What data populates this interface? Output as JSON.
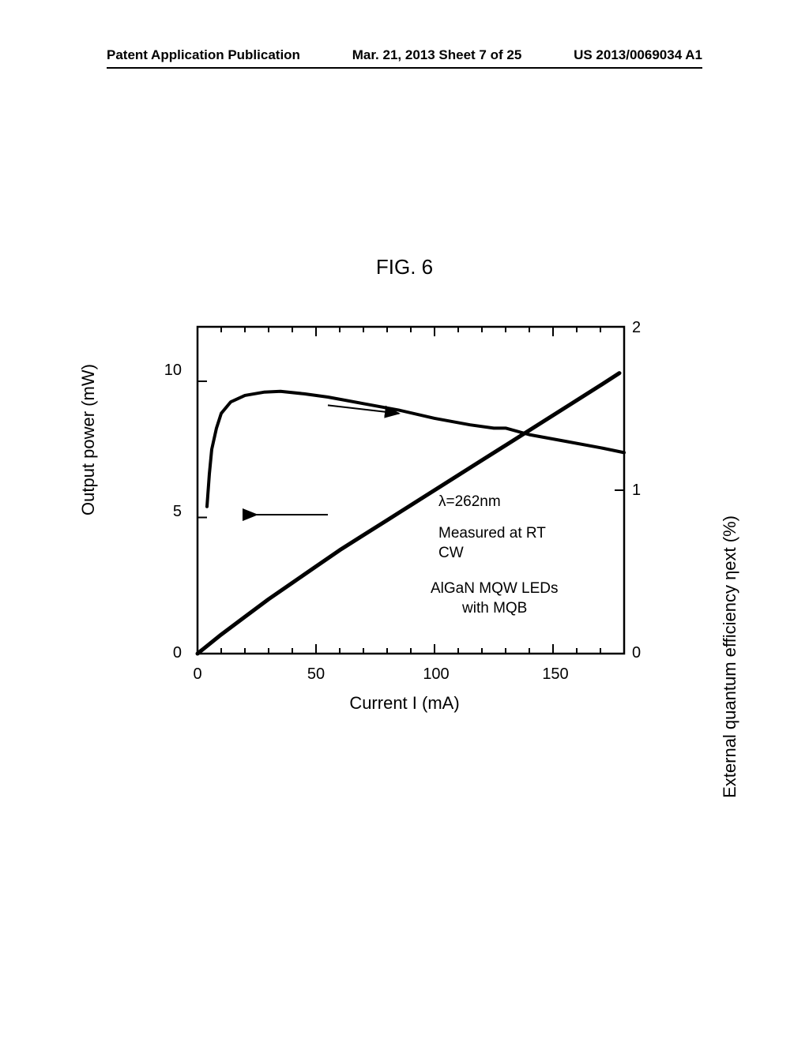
{
  "header": {
    "left": "Patent Application Publication",
    "center": "Mar. 21, 2013  Sheet 7 of 25",
    "right": "US 2013/0069034 A1"
  },
  "figure_title": "FIG. 6",
  "chart": {
    "type": "line",
    "background_color": "#ffffff",
    "axis_color": "#000000",
    "line_color": "#000000",
    "line_width_power": 5,
    "line_width_eqe": 4,
    "x_axis": {
      "label": "Current I (mA)",
      "min": 0,
      "max": 180,
      "ticks_major": [
        0,
        50,
        100,
        150
      ],
      "ticks_minor_step": 10
    },
    "y_left": {
      "label": "Output power (mW)",
      "min": 0,
      "max": 12,
      "ticks_major": [
        0,
        5,
        10
      ]
    },
    "y_right": {
      "label": "External quantum efficiency ηext (%)",
      "min": 0,
      "max": 2,
      "ticks_major": [
        0,
        1,
        2
      ]
    },
    "annotations": {
      "lambda": "λ=262nm",
      "measured": "Measured at RT",
      "cw": "CW",
      "device1": "AlGaN MQW LEDs",
      "device2": "with MQB"
    },
    "power_curve": [
      [
        0,
        0
      ],
      [
        10,
        0.7
      ],
      [
        20,
        1.35
      ],
      [
        30,
        2.0
      ],
      [
        40,
        2.6
      ],
      [
        50,
        3.2
      ],
      [
        60,
        3.8
      ],
      [
        70,
        4.35
      ],
      [
        80,
        4.9
      ],
      [
        90,
        5.45
      ],
      [
        100,
        6.0
      ],
      [
        110,
        6.55
      ],
      [
        120,
        7.1
      ],
      [
        130,
        7.65
      ],
      [
        140,
        8.2
      ],
      [
        150,
        8.75
      ],
      [
        160,
        9.3
      ],
      [
        170,
        9.85
      ],
      [
        178,
        10.3
      ]
    ],
    "eqe_curve": [
      [
        4,
        0.9
      ],
      [
        5,
        1.1
      ],
      [
        6,
        1.25
      ],
      [
        8,
        1.38
      ],
      [
        10,
        1.47
      ],
      [
        14,
        1.54
      ],
      [
        20,
        1.58
      ],
      [
        28,
        1.6
      ],
      [
        35,
        1.605
      ],
      [
        45,
        1.59
      ],
      [
        55,
        1.57
      ],
      [
        70,
        1.53
      ],
      [
        85,
        1.49
      ],
      [
        100,
        1.44
      ],
      [
        115,
        1.4
      ],
      [
        125,
        1.38
      ],
      [
        130,
        1.38
      ],
      [
        140,
        1.34
      ],
      [
        155,
        1.3
      ],
      [
        170,
        1.26
      ],
      [
        180,
        1.23
      ]
    ]
  }
}
